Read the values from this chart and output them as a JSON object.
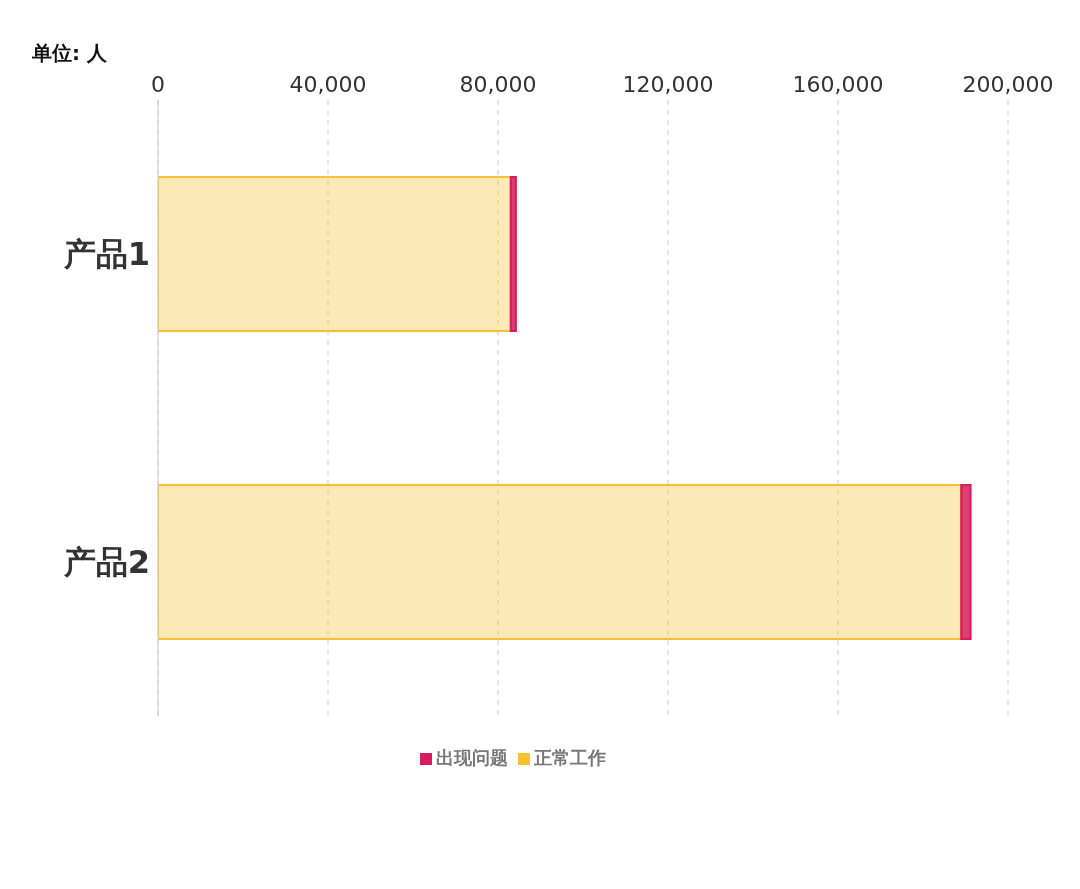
{
  "chart_data": {
    "type": "bar",
    "orientation": "horizontal",
    "stacked": true,
    "xlabel": "单位: 人",
    "categories": [
      "产品1",
      "产品2"
    ],
    "series": [
      {
        "name": "正常工作",
        "color": "#f6c02e",
        "values": [
          83000,
          189000
        ]
      },
      {
        "name": "出现问题",
        "color": "#d81b5a",
        "values": [
          1200,
          2200
        ]
      }
    ],
    "xlim": [
      0,
      200000
    ],
    "xticks": [
      0,
      {
        "value": 40000,
        "label": "40,000"
      },
      {
        "value": 80000,
        "label": "80,000"
      },
      {
        "value": 120000,
        "label": "120,000"
      },
      {
        "value": 160000,
        "label": "160,000"
      },
      {
        "value": 200000,
        "label": "200,000"
      }
    ],
    "grid": "x",
    "legend": "bottom"
  }
}
